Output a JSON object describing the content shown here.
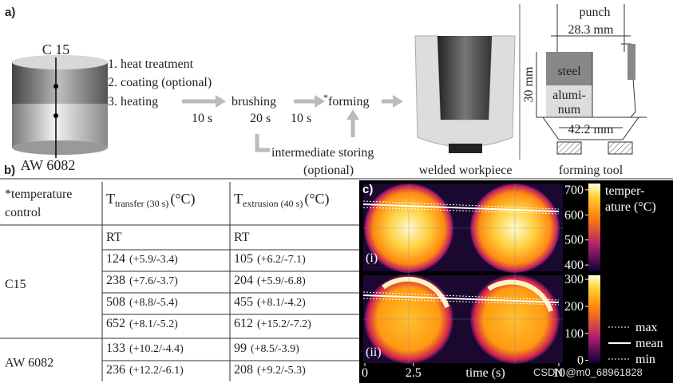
{
  "panel_a": {
    "label": "a)",
    "top_material": "C 15",
    "bottom_material": "AW 6082",
    "steps": [
      "1. heat treatment",
      "2. coating (optional)",
      "3. heating"
    ],
    "heating_time": "10 s",
    "brushing": "brushing",
    "brushing_time": "20 s",
    "transfer_time": "10 s",
    "forming_mark": "*",
    "forming": "forming",
    "storing": "intermediate storing",
    "storing_note": "(optional)",
    "workpiece_caption": "welded workpiece",
    "tool": {
      "punch": "punch",
      "punch_diameter": "28.3 mm",
      "steel": "steel",
      "aluminum": [
        "alumi-",
        "num"
      ],
      "height": "30 mm",
      "die_diameter": "42.2 mm",
      "caption": "forming tool"
    }
  },
  "panel_b": {
    "label": "b)",
    "header": {
      "control": [
        "*temperature",
        "control"
      ],
      "transfer": {
        "symbol": "T",
        "subscript": "transfer (30 s)",
        "unit": "(°C)"
      },
      "extrusion": {
        "symbol": "T",
        "subscript": "extrusion (40 s)",
        "unit": "(°C)"
      }
    },
    "groups": [
      {
        "name": "C15",
        "rows": [
          {
            "transfer": "RT",
            "extrusion": "RT"
          },
          {
            "transfer": 124,
            "transfer_dev": "(+5.9/-3.4)",
            "extrusion": 105,
            "extrusion_dev": "(+6.2/-7.1)"
          },
          {
            "transfer": 238,
            "transfer_dev": "(+7.6/-3.7)",
            "extrusion": 204,
            "extrusion_dev": "(+5.9/-6.8)"
          },
          {
            "transfer": 508,
            "transfer_dev": "(+8.8/-5.4)",
            "extrusion": 455,
            "extrusion_dev": "(+8.1/-4.2)"
          },
          {
            "transfer": 652,
            "transfer_dev": "(+8.1/-5.2)",
            "extrusion": 612,
            "extrusion_dev": "(+15.2/-7.2)"
          }
        ]
      },
      {
        "name": "AW 6082",
        "rows": [
          {
            "transfer": 133,
            "transfer_dev": "(+10.2/-4.4)",
            "extrusion": 99,
            "extrusion_dev": "(+8.5/-3.9)"
          },
          {
            "transfer": 236,
            "transfer_dev": "(+12.2/-6.1)",
            "extrusion": 208,
            "extrusion_dev": "(+9.2/-5.3)"
          }
        ]
      }
    ]
  },
  "panel_c": {
    "label": "c)",
    "plots": [
      "(i)",
      "(ii)"
    ],
    "x_axis": {
      "label": "time (s)",
      "xlim": [
        0,
        10
      ],
      "xticks": [
        0,
        2.5,
        10
      ]
    },
    "colorbars": [
      {
        "lim": [
          375,
          725
        ],
        "ticks": [
          700,
          600,
          500,
          400
        ]
      },
      {
        "lim": [
          -10,
          315
        ],
        "ticks": [
          300,
          200,
          100,
          0
        ]
      }
    ],
    "colorbar_label": [
      "temper-",
      "ature (°C)"
    ],
    "legend": [
      "max",
      "mean",
      "min"
    ]
  },
  "watermark": "CSDN @m0_68961828"
}
